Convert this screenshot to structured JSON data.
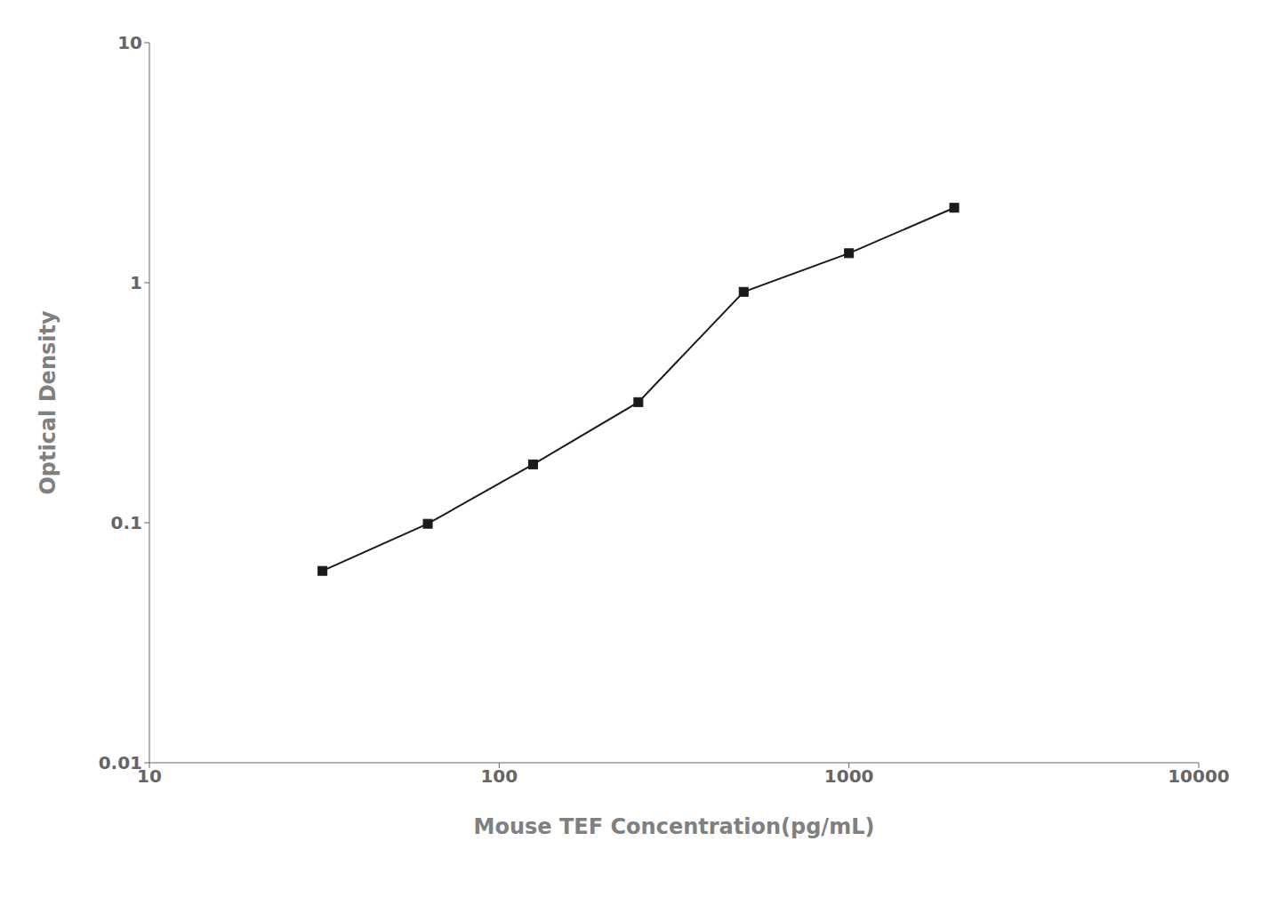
{
  "chart_data": {
    "type": "line",
    "x": [
      31.25,
      62.5,
      125,
      250,
      500,
      1000,
      2000
    ],
    "values": [
      0.063,
      0.099,
      0.175,
      0.318,
      0.916,
      1.327,
      2.052
    ],
    "xlabel": "Mouse TEF Concentration(pg/mL)",
    "ylabel": "Optical Density",
    "xlim": [
      10,
      10000
    ],
    "ylim": [
      0.01,
      10
    ],
    "xticks": [
      10,
      100,
      1000,
      10000
    ],
    "yticks": [
      0.01,
      0.1,
      1,
      10
    ],
    "log": true,
    "grid": false,
    "color": "#1a1a1a",
    "marker": "square"
  }
}
